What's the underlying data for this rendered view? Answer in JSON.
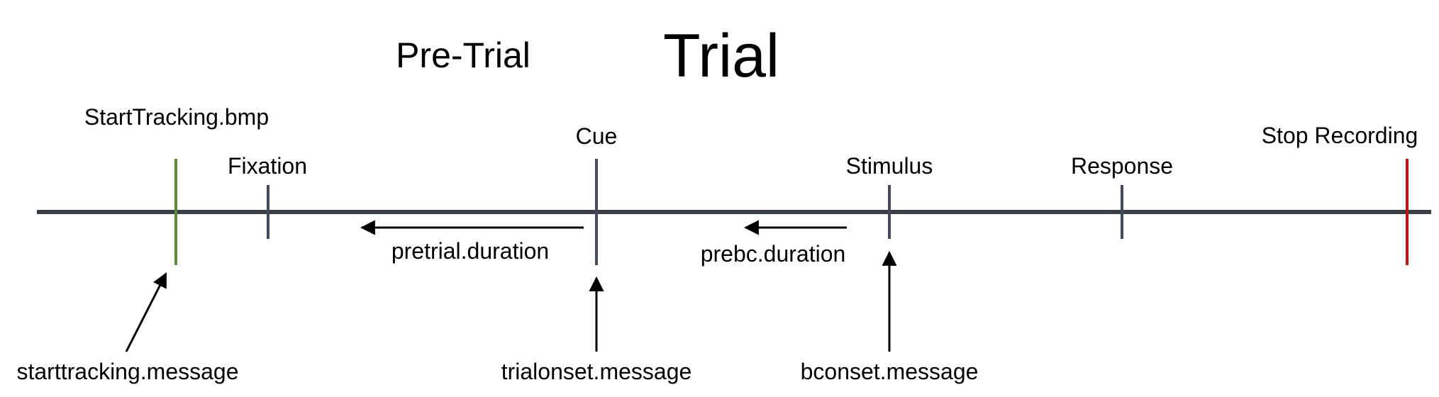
{
  "headings": {
    "pre_trial": "Pre-Trial",
    "trial": "Trial"
  },
  "events": {
    "start_tracking": "StartTracking.bmp",
    "fixation": "Fixation",
    "cue": "Cue",
    "stimulus": "Stimulus",
    "response": "Response",
    "stop_recording": "Stop Recording"
  },
  "durations": {
    "pretrial": "pretrial.duration",
    "prebc": "prebc.duration"
  },
  "messages": {
    "starttracking": "starttracking.message",
    "trialonset": "trialonset.message",
    "bconset": "bconset.message"
  },
  "colors": {
    "timeline": "#3a3f47",
    "tick": "#434b5c",
    "start_marker": "#5e8a3c",
    "stop_marker": "#c0161b",
    "arrow": "#000000"
  }
}
